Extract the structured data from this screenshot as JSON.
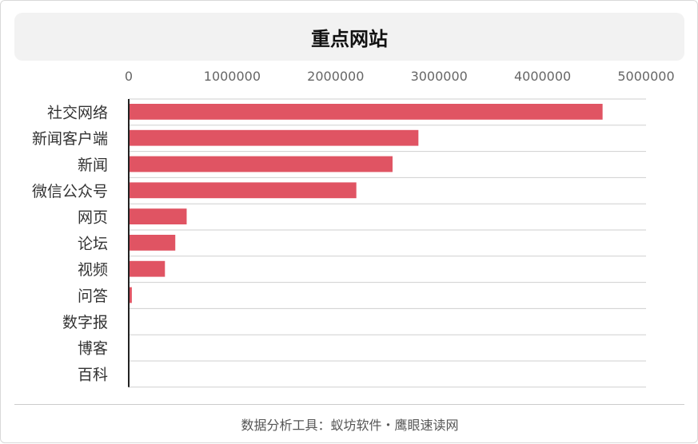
{
  "chart_data": {
    "type": "bar",
    "orientation": "horizontal",
    "title": "重点网站",
    "categories": [
      "社交网络",
      "新闻客户端",
      "新闻",
      "微信公众号",
      "网页",
      "论坛",
      "视频",
      "问答",
      "数字报",
      "博客",
      "百科"
    ],
    "values": [
      4580000,
      2800000,
      2550000,
      2200000,
      560000,
      450000,
      350000,
      30000,
      8000,
      0,
      0
    ],
    "xlim": [
      0,
      5000000
    ],
    "xticks": [
      "0",
      "1000000",
      "2000000",
      "3000000",
      "4000000",
      "5000000"
    ],
    "xlabel": "",
    "ylabel": "",
    "grid": true,
    "bar_color": "#e05463"
  },
  "footer": {
    "source": "数据分析工具：蚁坊软件・鹰眼速读网"
  }
}
